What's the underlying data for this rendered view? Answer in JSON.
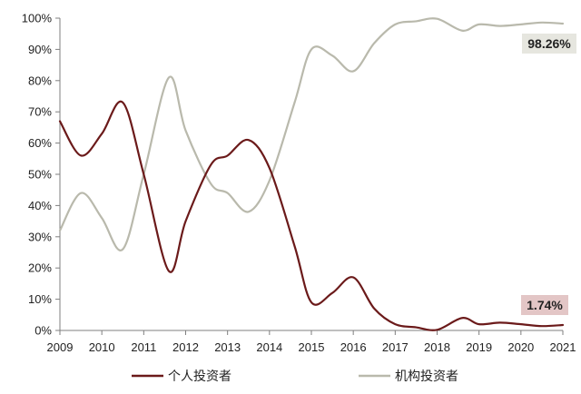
{
  "chart_data": {
    "type": "line",
    "x": [
      "2009",
      "2010",
      "2011",
      "2012",
      "2013",
      "2014",
      "2015",
      "2016",
      "2017",
      "2018",
      "2019",
      "2020",
      "2021"
    ],
    "ylim": [
      0,
      100
    ],
    "yticks": [
      0,
      10,
      20,
      30,
      40,
      50,
      60,
      70,
      80,
      90,
      100
    ],
    "ytick_labels": [
      "0%",
      "10%",
      "20%",
      "30%",
      "40%",
      "50%",
      "60%",
      "70%",
      "80%",
      "90%",
      "100%"
    ],
    "grid": false,
    "legend_position": "bottom",
    "series": [
      {
        "name": "个人投资者",
        "color": "#6b1a1a",
        "points": [
          [
            2009.0,
            67
          ],
          [
            2009.5,
            56
          ],
          [
            2010.0,
            63
          ],
          [
            2010.5,
            73
          ],
          [
            2011.0,
            50
          ],
          [
            2011.6,
            19
          ],
          [
            2012.0,
            35
          ],
          [
            2012.6,
            53
          ],
          [
            2013.0,
            56
          ],
          [
            2013.5,
            61
          ],
          [
            2014.0,
            52
          ],
          [
            2014.6,
            27
          ],
          [
            2015.0,
            9
          ],
          [
            2015.5,
            12
          ],
          [
            2016.0,
            17
          ],
          [
            2016.5,
            7
          ],
          [
            2017.0,
            2
          ],
          [
            2017.5,
            1
          ],
          [
            2018.0,
            0.2
          ],
          [
            2018.6,
            4
          ],
          [
            2019.0,
            2
          ],
          [
            2019.5,
            2.5
          ],
          [
            2020.0,
            2
          ],
          [
            2020.5,
            1.4
          ],
          [
            2021.0,
            1.74
          ]
        ],
        "end_label": "1.74%",
        "end_label_color": "#e3c6c6"
      },
      {
        "name": "机构投资者",
        "color": "#b9b9ac",
        "points": [
          [
            2009.0,
            32
          ],
          [
            2009.5,
            44
          ],
          [
            2010.0,
            36
          ],
          [
            2010.5,
            26
          ],
          [
            2011.0,
            50
          ],
          [
            2011.6,
            81
          ],
          [
            2012.0,
            64
          ],
          [
            2012.6,
            47
          ],
          [
            2013.0,
            44
          ],
          [
            2013.5,
            38
          ],
          [
            2014.0,
            48
          ],
          [
            2014.6,
            73
          ],
          [
            2015.0,
            90
          ],
          [
            2015.5,
            88
          ],
          [
            2016.0,
            83
          ],
          [
            2016.5,
            92
          ],
          [
            2017.0,
            98
          ],
          [
            2017.5,
            99
          ],
          [
            2018.0,
            99.8
          ],
          [
            2018.6,
            96
          ],
          [
            2019.0,
            98
          ],
          [
            2019.5,
            97.5
          ],
          [
            2020.0,
            98
          ],
          [
            2020.5,
            98.6
          ],
          [
            2021.0,
            98.26
          ]
        ],
        "end_label": "98.26%",
        "end_label_color": "#e6e6df"
      }
    ]
  }
}
